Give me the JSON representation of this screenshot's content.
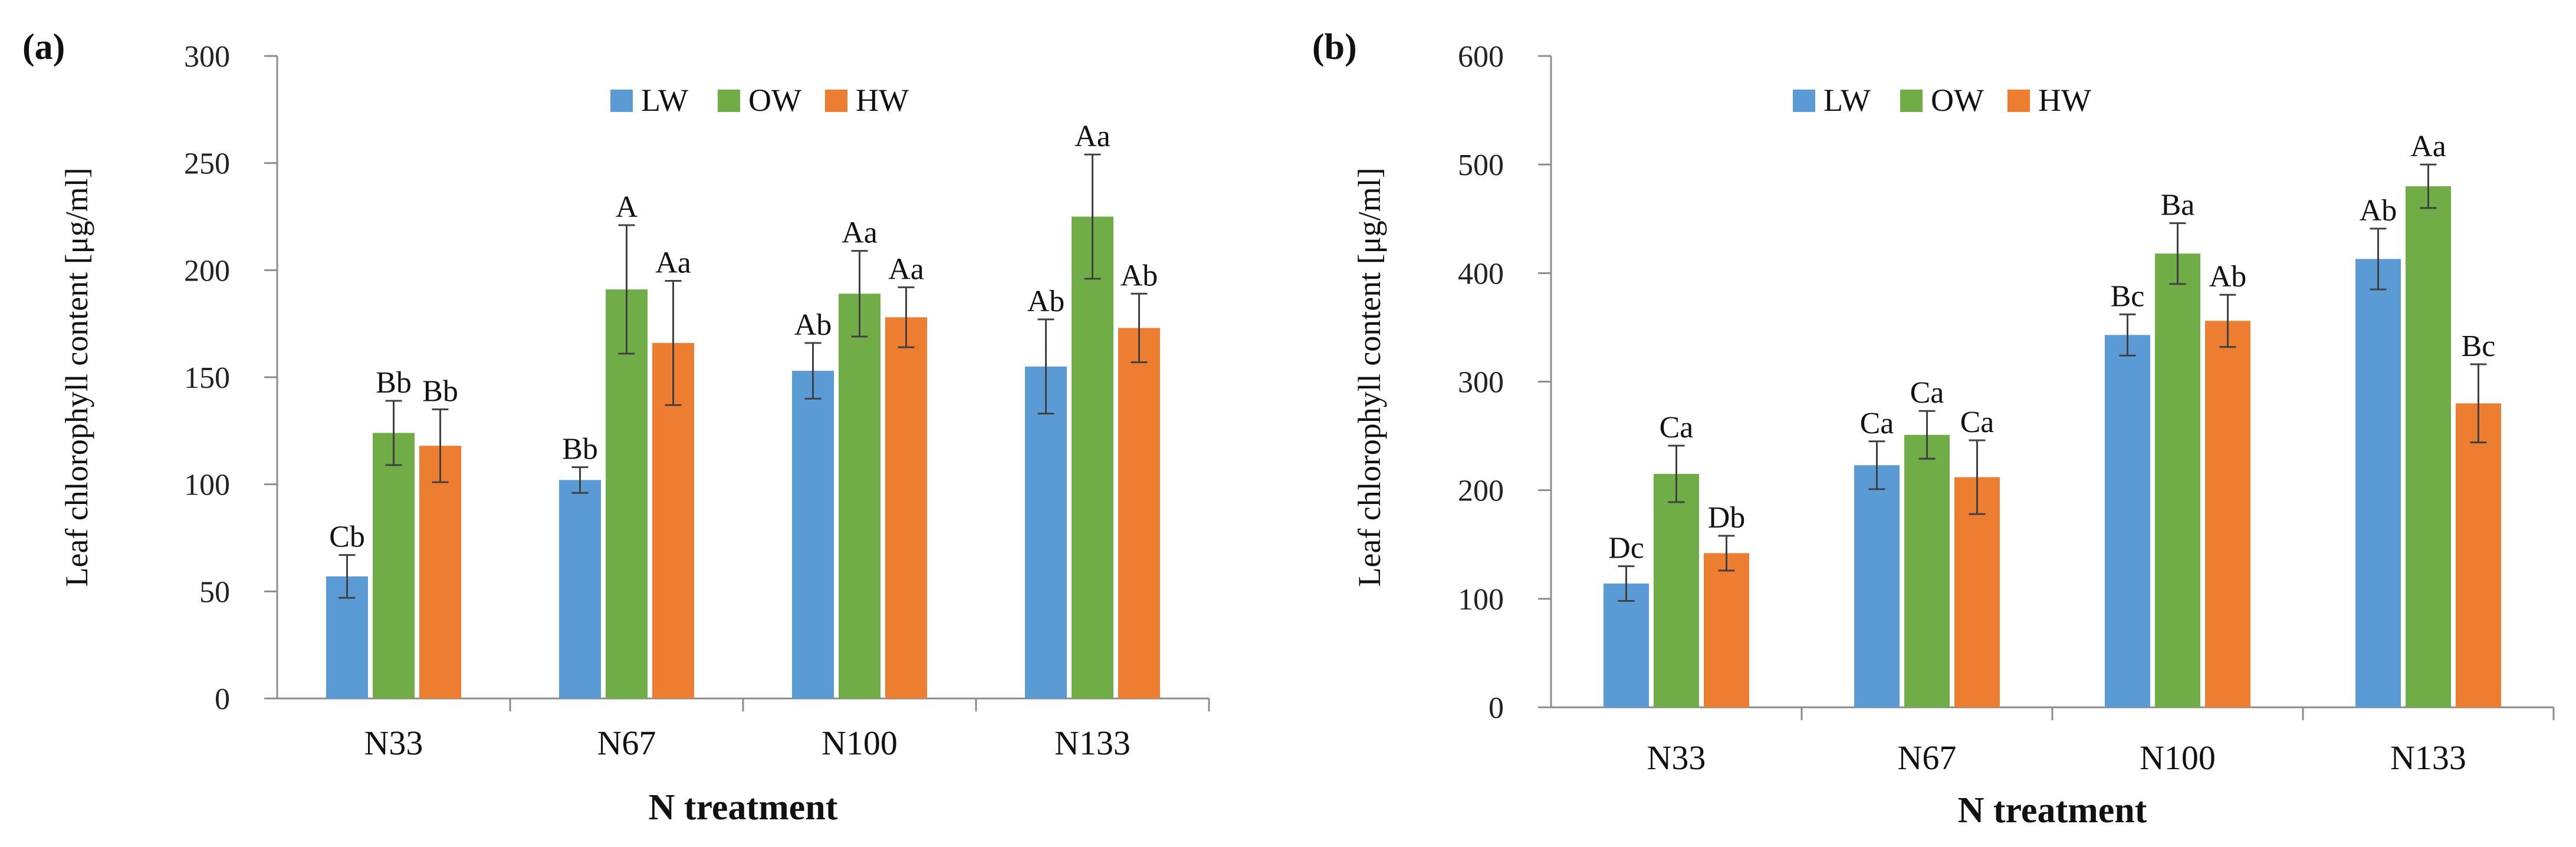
{
  "chart_data": [
    {
      "type": "bar",
      "panel_label": "(a)",
      "categories": [
        "N33",
        "N67",
        "N100",
        "N133"
      ],
      "series": [
        {
          "name": "LW",
          "color": "#5B9BD5",
          "values": [
            57,
            102,
            153,
            155
          ],
          "errors": [
            10,
            6,
            13,
            22
          ],
          "labels": [
            "Cb",
            "Bb",
            "Ab",
            "Ab"
          ]
        },
        {
          "name": "OW",
          "color": "#70AD47",
          "values": [
            124,
            191,
            189,
            225
          ],
          "errors": [
            15,
            30,
            20,
            29
          ],
          "labels": [
            "Bb",
            "A",
            "Aa",
            "Aa"
          ]
        },
        {
          "name": "HW",
          "color": "#ED7D31",
          "values": [
            118,
            166,
            178,
            173
          ],
          "errors": [
            17,
            29,
            14,
            16
          ],
          "labels": [
            "Bb",
            "Aa",
            "Aa",
            "Ab"
          ]
        }
      ],
      "ylim": [
        0,
        300
      ],
      "yticks": [
        0,
        50,
        100,
        150,
        200,
        250,
        300
      ],
      "xlabel": "N treatment",
      "ylabel": "Leaf chlorophyll content  [μg/ml]",
      "legend_position": "top-center",
      "grid": false
    },
    {
      "type": "bar",
      "panel_label": "(b)",
      "categories": [
        "N33",
        "N67",
        "N100",
        "N133"
      ],
      "series": [
        {
          "name": "LW",
          "color": "#5B9BD5",
          "values": [
            114,
            223,
            343,
            413
          ],
          "errors": [
            16,
            22,
            19,
            28
          ],
          "labels": [
            "Dc",
            "Ca",
            "Bc",
            "Ab"
          ]
        },
        {
          "name": "OW",
          "color": "#70AD47",
          "values": [
            215,
            251,
            418,
            480
          ],
          "errors": [
            26,
            22,
            28,
            20
          ],
          "labels": [
            "Ca",
            "Ca",
            "Ba",
            "Aa"
          ]
        },
        {
          "name": "HW",
          "color": "#ED7D31",
          "values": [
            142,
            212,
            356,
            280
          ],
          "errors": [
            16,
            34,
            24,
            36
          ],
          "labels": [
            "Db",
            "Ca",
            "Ab",
            "Bc"
          ]
        }
      ],
      "ylim": [
        0,
        600
      ],
      "yticks": [
        0,
        100,
        200,
        300,
        400,
        500,
        600
      ],
      "xlabel": "N treatment",
      "ylabel": "Leaf chlorophyll content  [μg/ml]",
      "legend_position": "top-center",
      "grid": false
    }
  ]
}
